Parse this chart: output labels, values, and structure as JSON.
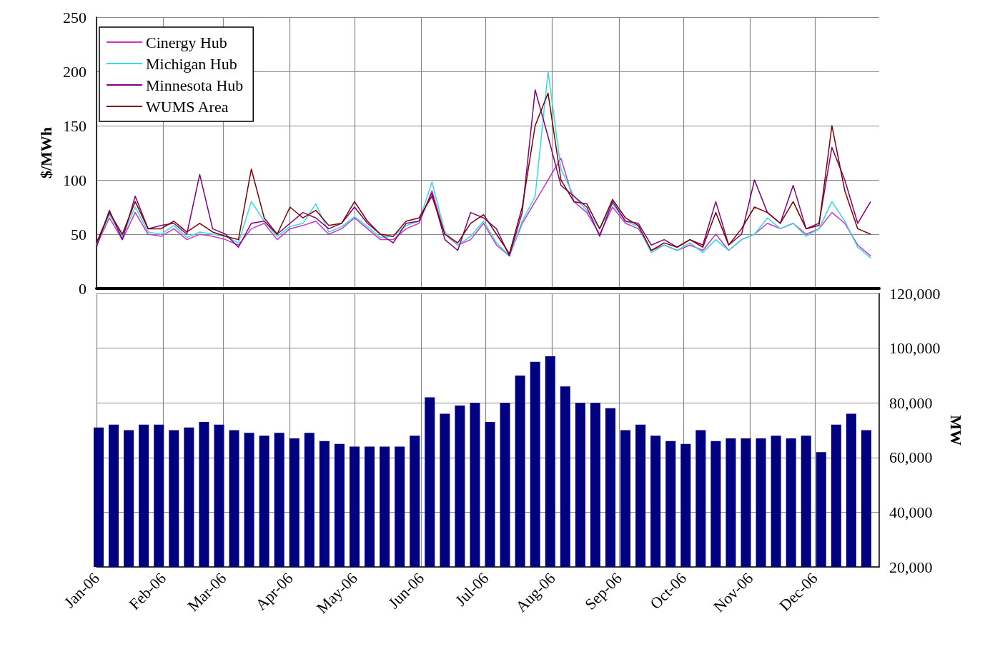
{
  "chart_data": [
    {
      "type": "line",
      "ylabel": "$/MWh",
      "xlim": [
        "2006-01-01",
        "2006-12-31"
      ],
      "xticks": [
        {
          "value": "2006-01-01",
          "label": null
        },
        {
          "value": "2006-02-01",
          "label": null
        },
        {
          "value": "2006-03-01",
          "label": null
        },
        {
          "value": "2006-04-01",
          "label": null
        },
        {
          "value": "2006-05-01",
          "label": null
        },
        {
          "value": "2006-06-01",
          "label": null
        },
        {
          "value": "2006-07-01",
          "label": null
        },
        {
          "value": "2006-08-01",
          "label": null
        },
        {
          "value": "2006-09-01",
          "label": null
        },
        {
          "value": "2006-10-01",
          "label": null
        },
        {
          "value": "2006-11-01",
          "label": null
        },
        {
          "value": "2006-12-01",
          "label": null
        }
      ],
      "ylim": [
        0,
        250
      ],
      "yticks": [
        0,
        50,
        100,
        150,
        200,
        250
      ],
      "grid": true,
      "legend": "top left",
      "tick_labels": "y",
      "x": [
        "2006-01-01",
        "2006-01-07",
        "2006-01-13",
        "2006-01-19",
        "2006-01-25",
        "2006-01-31",
        "2006-02-06",
        "2006-02-12",
        "2006-02-18",
        "2006-02-24",
        "2006-03-02",
        "2006-03-08",
        "2006-03-14",
        "2006-03-20",
        "2006-03-26",
        "2006-04-01",
        "2006-04-07",
        "2006-04-13",
        "2006-04-19",
        "2006-04-25",
        "2006-05-01",
        "2006-05-07",
        "2006-05-13",
        "2006-05-19",
        "2006-05-25",
        "2006-05-31",
        "2006-06-06",
        "2006-06-12",
        "2006-06-18",
        "2006-06-24",
        "2006-06-30",
        "2006-07-06",
        "2006-07-12",
        "2006-07-18",
        "2006-07-24",
        "2006-07-30",
        "2006-08-05",
        "2006-08-11",
        "2006-08-17",
        "2006-08-23",
        "2006-08-29",
        "2006-09-04",
        "2006-09-10",
        "2006-09-16",
        "2006-09-22",
        "2006-09-28",
        "2006-10-04",
        "2006-10-10",
        "2006-10-16",
        "2006-10-22",
        "2006-10-28",
        "2006-11-03",
        "2006-11-09",
        "2006-11-15",
        "2006-11-21",
        "2006-11-27",
        "2006-12-03",
        "2006-12-09",
        "2006-12-15",
        "2006-12-21",
        "2006-12-27"
      ],
      "series": [
        {
          "name": "Cinergy Hub",
          "color": "#cc33cc",
          "values": [
            40,
            65,
            45,
            70,
            50,
            48,
            55,
            45,
            50,
            48,
            45,
            40,
            55,
            60,
            45,
            55,
            58,
            62,
            50,
            55,
            65,
            55,
            45,
            45,
            55,
            60,
            90,
            50,
            40,
            45,
            60,
            40,
            30,
            60,
            80,
            100,
            120,
            80,
            70,
            50,
            75,
            60,
            55,
            35,
            40,
            35,
            40,
            35,
            50,
            35,
            45,
            50,
            60,
            55,
            60,
            50,
            55,
            70,
            60,
            40,
            30
          ]
        },
        {
          "name": "Michigan Hub",
          "color": "#33dddd",
          "values": [
            40,
            68,
            48,
            75,
            52,
            50,
            58,
            47,
            52,
            50,
            48,
            42,
            80,
            62,
            48,
            57,
            60,
            78,
            52,
            57,
            66,
            57,
            47,
            48,
            58,
            62,
            98,
            52,
            40,
            48,
            62,
            42,
            30,
            62,
            85,
            200,
            110,
            85,
            72,
            55,
            78,
            62,
            57,
            33,
            40,
            35,
            42,
            33,
            45,
            35,
            45,
            50,
            65,
            55,
            60,
            48,
            55,
            80,
            62,
            38,
            28
          ]
        },
        {
          "name": "Minnesota Hub",
          "color": "#800080",
          "values": [
            38,
            72,
            45,
            85,
            55,
            58,
            60,
            50,
            105,
            55,
            50,
            38,
            60,
            62,
            50,
            60,
            70,
            65,
            55,
            60,
            75,
            60,
            50,
            42,
            60,
            62,
            88,
            45,
            35,
            70,
            65,
            55,
            30,
            70,
            183,
            140,
            95,
            85,
            75,
            48,
            80,
            62,
            60,
            40,
            45,
            38,
            45,
            40,
            80,
            40,
            50,
            100,
            70,
            60,
            95,
            55,
            60,
            130,
            100,
            60,
            80
          ]
        },
        {
          "name": "WUMS Area",
          "color": "#800000",
          "values": [
            42,
            70,
            50,
            80,
            55,
            55,
            62,
            52,
            60,
            52,
            48,
            45,
            110,
            65,
            50,
            75,
            65,
            72,
            58,
            60,
            80,
            62,
            50,
            48,
            62,
            65,
            85,
            50,
            42,
            60,
            68,
            50,
            32,
            75,
            150,
            180,
            100,
            80,
            78,
            55,
            82,
            65,
            58,
            35,
            42,
            38,
            45,
            38,
            70,
            40,
            55,
            75,
            70,
            60,
            80,
            55,
            58,
            150,
            90,
            55,
            50
          ]
        }
      ]
    },
    {
      "type": "bar",
      "y2label": "MW",
      "xlim": [
        "2006-01-01",
        "2006-12-31"
      ],
      "xticks": [
        {
          "value": "2006-01-01",
          "label": "Jan-06"
        },
        {
          "value": "2006-02-01",
          "label": "Feb-06"
        },
        {
          "value": "2006-03-01",
          "label": "Mar-06"
        },
        {
          "value": "2006-04-01",
          "label": "Apr-06"
        },
        {
          "value": "2006-05-01",
          "label": "May-06"
        },
        {
          "value": "2006-06-01",
          "label": "Jun-06"
        },
        {
          "value": "2006-07-01",
          "label": "Jul-06"
        },
        {
          "value": "2006-08-01",
          "label": "Aug-06"
        },
        {
          "value": "2006-09-01",
          "label": "Sep-06"
        },
        {
          "value": "2006-10-01",
          "label": "Oct-06"
        },
        {
          "value": "2006-11-01",
          "label": "Nov-06"
        },
        {
          "value": "2006-12-01",
          "label": "Dec-06"
        }
      ],
      "y2lim": [
        20000,
        120000
      ],
      "y2ticks": [
        {
          "value": 20000,
          "label": "20,000"
        },
        {
          "value": 40000,
          "label": "40,000"
        },
        {
          "value": 60000,
          "label": "60,000"
        },
        {
          "value": 80000,
          "label": "80,000"
        },
        {
          "value": 100000,
          "label": "100,000"
        },
        {
          "value": 120000,
          "label": "120,000"
        }
      ],
      "grid": true,
      "x": [
        "2006-01-02",
        "2006-01-09",
        "2006-01-16",
        "2006-01-23",
        "2006-01-30",
        "2006-02-06",
        "2006-02-13",
        "2006-02-20",
        "2006-02-27",
        "2006-03-06",
        "2006-03-13",
        "2006-03-20",
        "2006-03-27",
        "2006-04-03",
        "2006-04-10",
        "2006-04-17",
        "2006-04-24",
        "2006-05-01",
        "2006-05-08",
        "2006-05-15",
        "2006-05-22",
        "2006-05-29",
        "2006-06-05",
        "2006-06-12",
        "2006-06-19",
        "2006-06-26",
        "2006-07-03",
        "2006-07-10",
        "2006-07-17",
        "2006-07-24",
        "2006-07-31",
        "2006-08-07",
        "2006-08-14",
        "2006-08-21",
        "2006-08-28",
        "2006-09-04",
        "2006-09-11",
        "2006-09-18",
        "2006-09-25",
        "2006-10-02",
        "2006-10-09",
        "2006-10-16",
        "2006-10-23",
        "2006-10-30",
        "2006-11-06",
        "2006-11-13",
        "2006-11-20",
        "2006-11-27",
        "2006-12-04",
        "2006-12-11",
        "2006-12-18",
        "2006-12-25"
      ],
      "series": [
        {
          "color": "#000080",
          "axis": "y2",
          "values": [
            71000,
            72000,
            70000,
            72000,
            72000,
            70000,
            71000,
            73000,
            72000,
            70000,
            69000,
            68000,
            69000,
            67000,
            69000,
            66000,
            65000,
            64000,
            64000,
            64000,
            64000,
            68000,
            82000,
            76000,
            79000,
            80000,
            73000,
            80000,
            90000,
            95000,
            97000,
            86000,
            80000,
            80000,
            78000,
            70000,
            72000,
            68000,
            66000,
            65000,
            70000,
            66000,
            67000,
            67000,
            67000,
            68000,
            67000,
            68000,
            62000,
            72000,
            76000,
            70000
          ]
        }
      ]
    }
  ]
}
